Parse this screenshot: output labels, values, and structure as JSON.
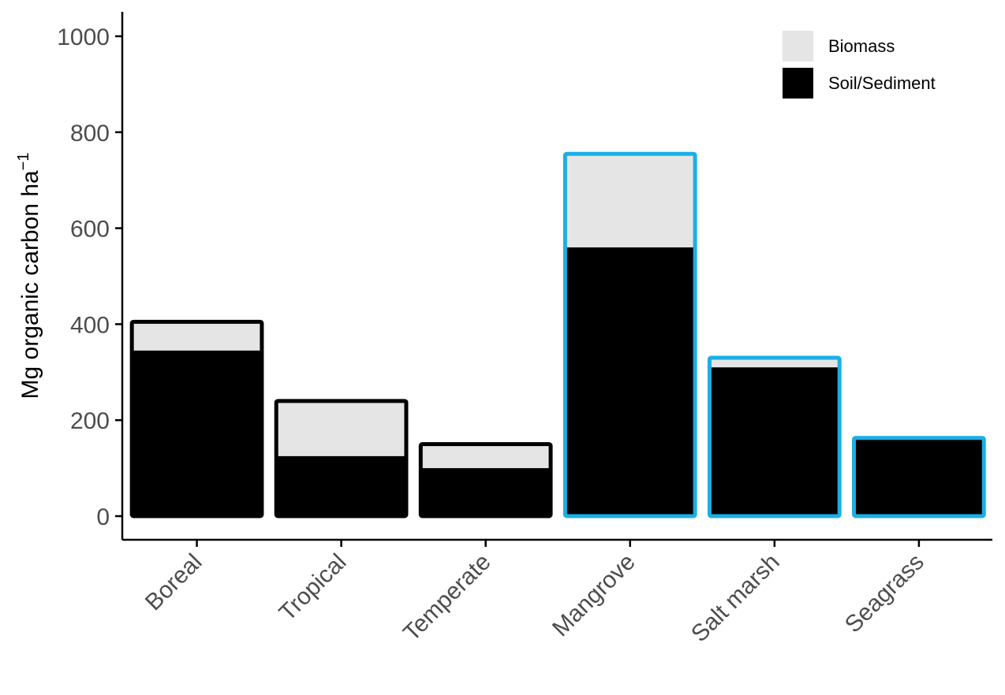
{
  "chart_data": {
    "type": "bar",
    "stacked": true,
    "categories": [
      "Boreal",
      "Tropical",
      "Temperate",
      "Mangrove",
      "Salt marsh",
      "Seagrass"
    ],
    "series": [
      {
        "name": "Soil/Sediment",
        "values": [
          345,
          125,
          100,
          560,
          310,
          160
        ],
        "color": "#000000"
      },
      {
        "name": "Biomass",
        "values": [
          60,
          115,
          50,
          195,
          20,
          3
        ],
        "color": "#e5e5e5"
      }
    ],
    "outline_colors": [
      "#000000",
      "#000000",
      "#000000",
      "#1aafe6",
      "#1aafe6",
      "#1aafe6"
    ],
    "ylabel": "Mg organic carbon ha",
    "ylabel_superscript": "−1",
    "yticks": [
      0,
      200,
      400,
      600,
      800,
      1000
    ],
    "ylim": [
      -50,
      1050
    ],
    "legend": {
      "position": "top-right",
      "entries": [
        "Biomass",
        "Soil/Sediment"
      ]
    },
    "grid": false
  }
}
